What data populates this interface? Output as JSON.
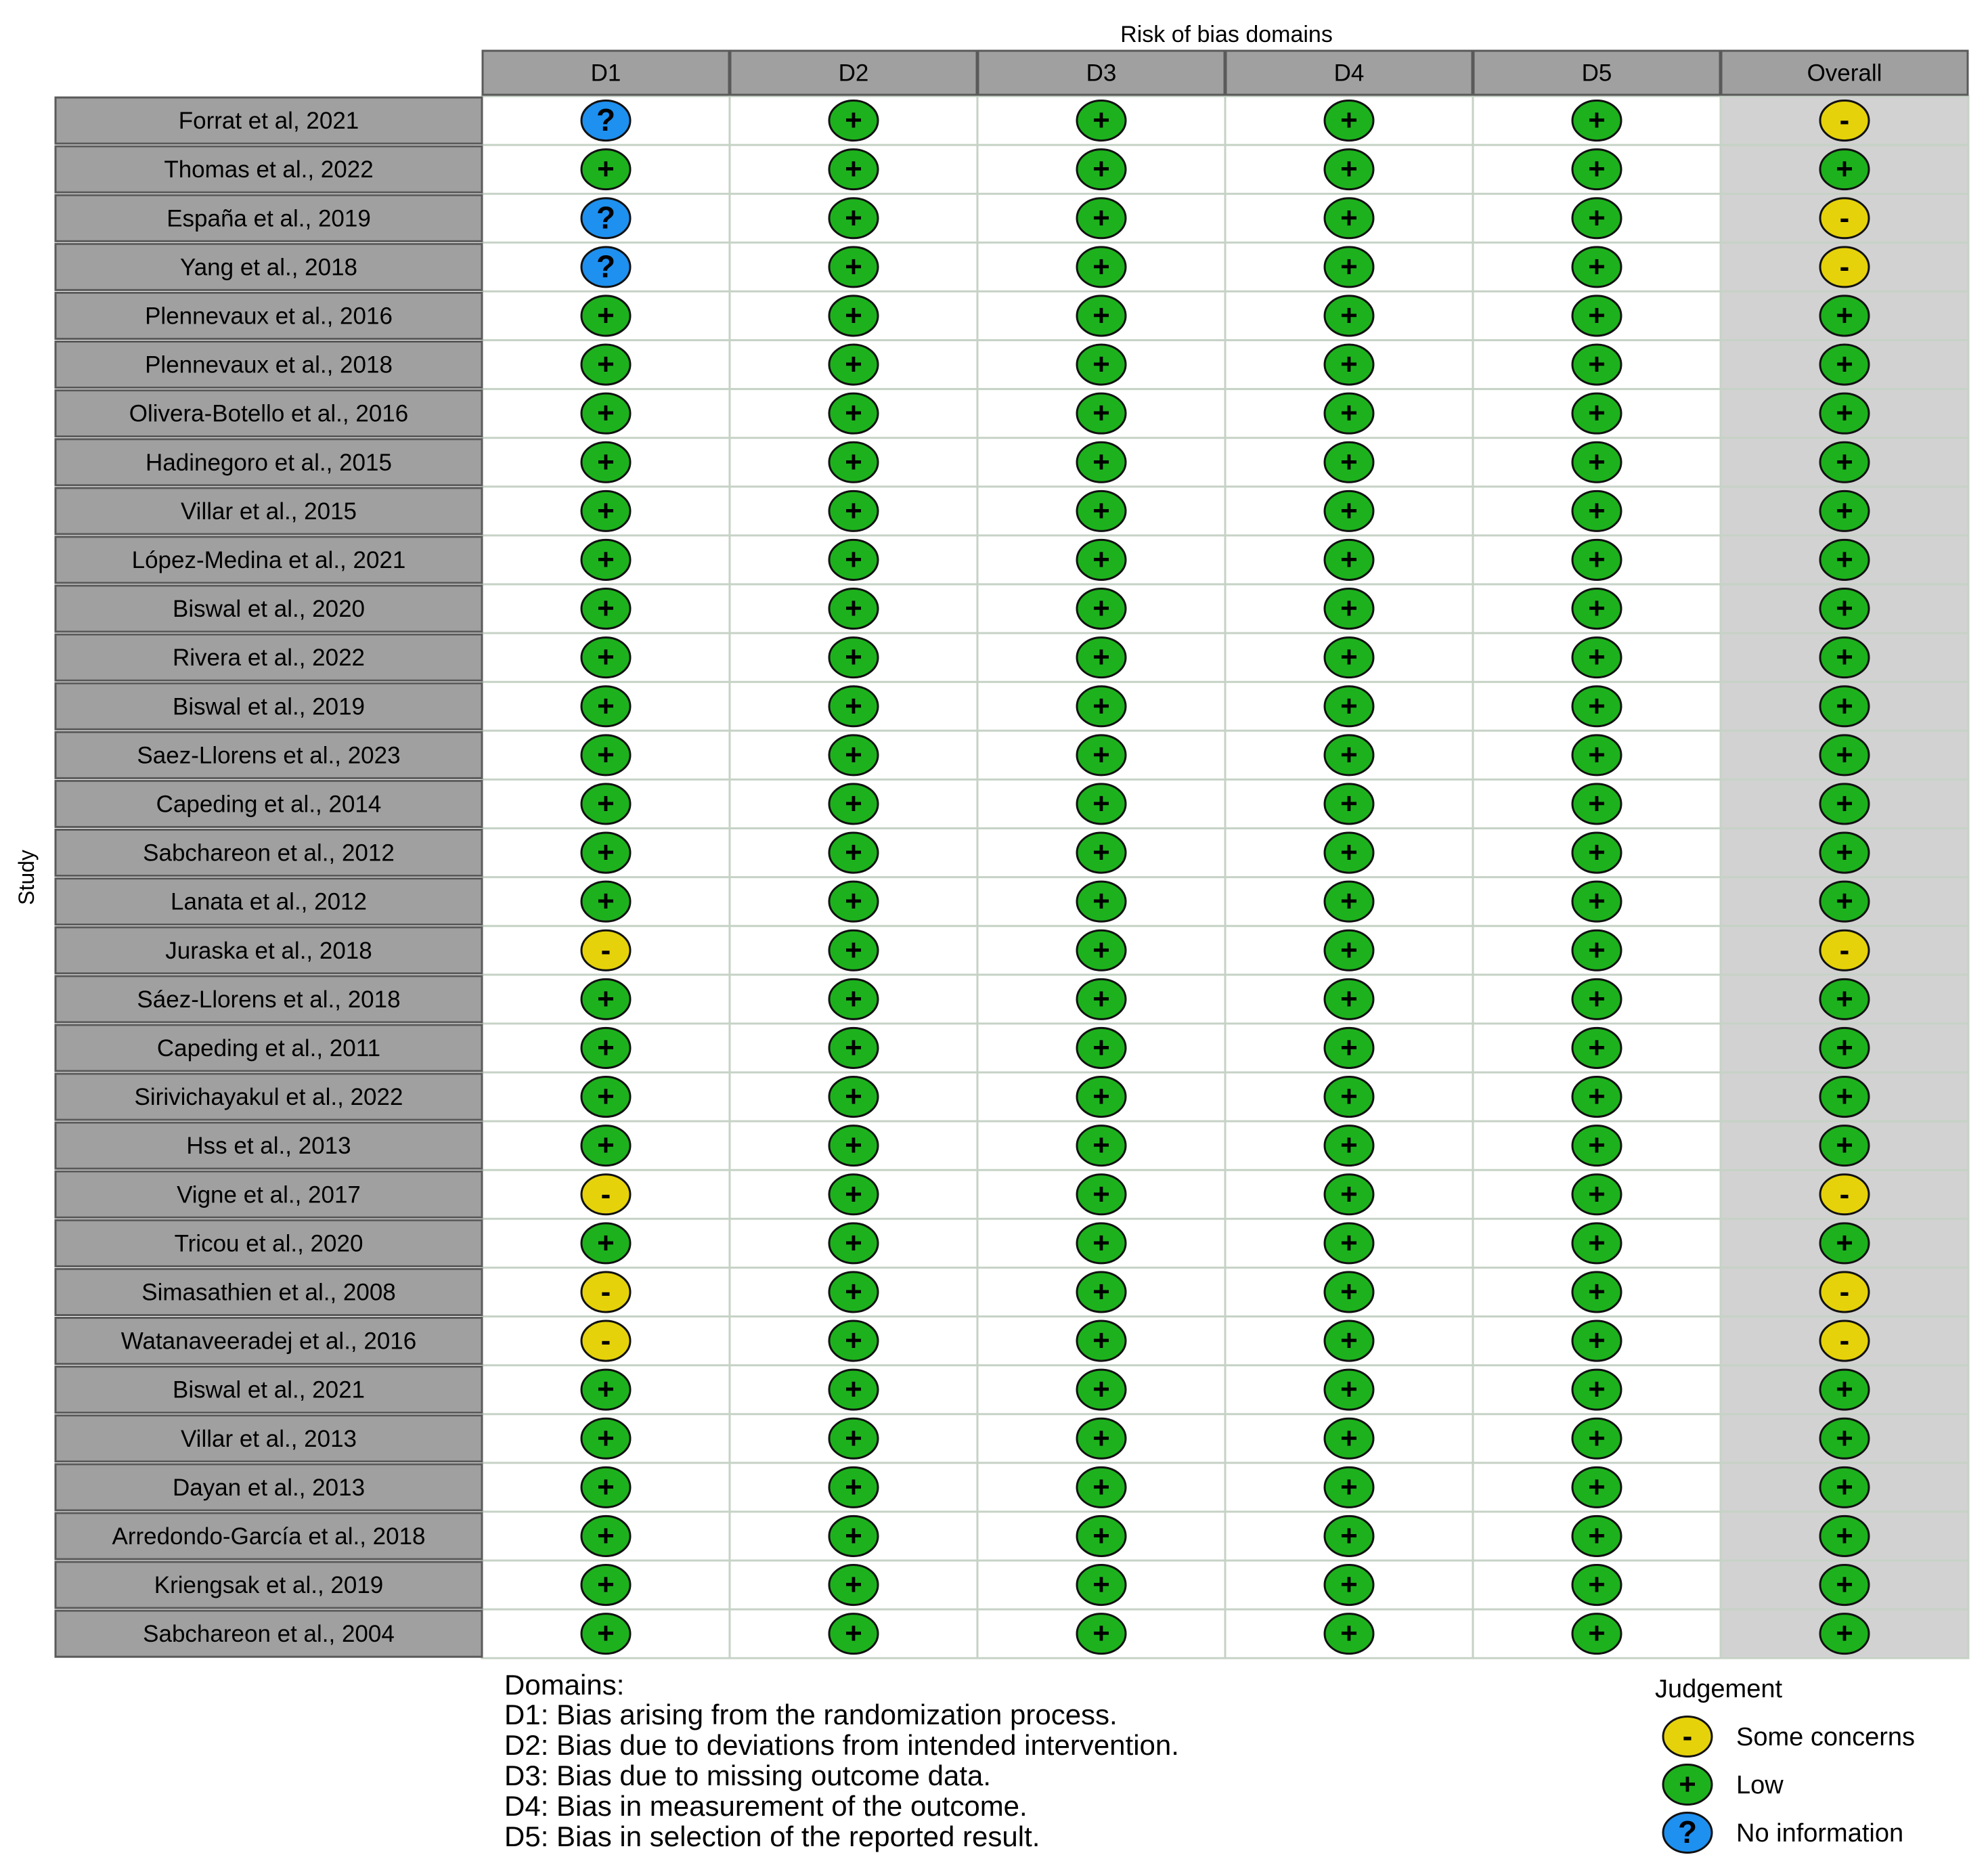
{
  "chart_data": {
    "type": "table",
    "title": "Risk of bias domains",
    "ylabel": "Study",
    "columns": [
      "D1",
      "D2",
      "D3",
      "D4",
      "D5",
      "Overall"
    ],
    "studies": [
      {
        "name": "Forrat et al, 2021",
        "judgements": [
          "no_information",
          "low",
          "low",
          "low",
          "low",
          "some_concerns"
        ]
      },
      {
        "name": "Thomas et al., 2022",
        "judgements": [
          "low",
          "low",
          "low",
          "low",
          "low",
          "low"
        ]
      },
      {
        "name": "España et al., 2019",
        "judgements": [
          "no_information",
          "low",
          "low",
          "low",
          "low",
          "some_concerns"
        ]
      },
      {
        "name": "Yang et al., 2018",
        "judgements": [
          "no_information",
          "low",
          "low",
          "low",
          "low",
          "some_concerns"
        ]
      },
      {
        "name": "Plennevaux et al., 2016",
        "judgements": [
          "low",
          "low",
          "low",
          "low",
          "low",
          "low"
        ]
      },
      {
        "name": "Plennevaux et al., 2018",
        "judgements": [
          "low",
          "low",
          "low",
          "low",
          "low",
          "low"
        ]
      },
      {
        "name": "Olivera-Botello et al., 2016",
        "judgements": [
          "low",
          "low",
          "low",
          "low",
          "low",
          "low"
        ]
      },
      {
        "name": "Hadinegoro et al., 2015",
        "judgements": [
          "low",
          "low",
          "low",
          "low",
          "low",
          "low"
        ]
      },
      {
        "name": "Villar et al., 2015",
        "judgements": [
          "low",
          "low",
          "low",
          "low",
          "low",
          "low"
        ]
      },
      {
        "name": "López-Medina et al., 2021",
        "judgements": [
          "low",
          "low",
          "low",
          "low",
          "low",
          "low"
        ]
      },
      {
        "name": "Biswal et al., 2020",
        "judgements": [
          "low",
          "low",
          "low",
          "low",
          "low",
          "low"
        ]
      },
      {
        "name": "Rivera et al., 2022",
        "judgements": [
          "low",
          "low",
          "low",
          "low",
          "low",
          "low"
        ]
      },
      {
        "name": "Biswal et al., 2019",
        "judgements": [
          "low",
          "low",
          "low",
          "low",
          "low",
          "low"
        ]
      },
      {
        "name": "Saez-Llorens et al., 2023",
        "judgements": [
          "low",
          "low",
          "low",
          "low",
          "low",
          "low"
        ]
      },
      {
        "name": "Capeding et al., 2014",
        "judgements": [
          "low",
          "low",
          "low",
          "low",
          "low",
          "low"
        ]
      },
      {
        "name": "Sabchareon et al., 2012",
        "judgements": [
          "low",
          "low",
          "low",
          "low",
          "low",
          "low"
        ]
      },
      {
        "name": "Lanata et al., 2012",
        "judgements": [
          "low",
          "low",
          "low",
          "low",
          "low",
          "low"
        ]
      },
      {
        "name": "Juraska et al., 2018",
        "judgements": [
          "some_concerns",
          "low",
          "low",
          "low",
          "low",
          "some_concerns"
        ]
      },
      {
        "name": "Sáez-Llorens et al., 2018",
        "judgements": [
          "low",
          "low",
          "low",
          "low",
          "low",
          "low"
        ]
      },
      {
        "name": "Capeding et al., 2011",
        "judgements": [
          "low",
          "low",
          "low",
          "low",
          "low",
          "low"
        ]
      },
      {
        "name": "Sirivichayakul et al., 2022",
        "judgements": [
          "low",
          "low",
          "low",
          "low",
          "low",
          "low"
        ]
      },
      {
        "name": "Hss et al., 2013",
        "judgements": [
          "low",
          "low",
          "low",
          "low",
          "low",
          "low"
        ]
      },
      {
        "name": "Vigne et al., 2017",
        "judgements": [
          "some_concerns",
          "low",
          "low",
          "low",
          "low",
          "some_concerns"
        ]
      },
      {
        "name": "Tricou et al., 2020",
        "judgements": [
          "low",
          "low",
          "low",
          "low",
          "low",
          "low"
        ]
      },
      {
        "name": "Simasathien et al., 2008",
        "judgements": [
          "some_concerns",
          "low",
          "low",
          "low",
          "low",
          "some_concerns"
        ]
      },
      {
        "name": "Watanaveeradej et al., 2016",
        "judgements": [
          "some_concerns",
          "low",
          "low",
          "low",
          "low",
          "some_concerns"
        ]
      },
      {
        "name": "Biswal et al., 2021",
        "judgements": [
          "low",
          "low",
          "low",
          "low",
          "low",
          "low"
        ]
      },
      {
        "name": "Villar et al., 2013",
        "judgements": [
          "low",
          "low",
          "low",
          "low",
          "low",
          "low"
        ]
      },
      {
        "name": "Dayan et al., 2013",
        "judgements": [
          "low",
          "low",
          "low",
          "low",
          "low",
          "low"
        ]
      },
      {
        "name": "Arredondo-García et al., 2018",
        "judgements": [
          "low",
          "low",
          "low",
          "low",
          "low",
          "low"
        ]
      },
      {
        "name": "Kriengsak et al., 2019",
        "judgements": [
          "low",
          "low",
          "low",
          "low",
          "low",
          "low"
        ]
      },
      {
        "name": "Sabchareon et al., 2004",
        "judgements": [
          "low",
          "low",
          "low",
          "low",
          "low",
          "low"
        ]
      }
    ],
    "judgement_styles": {
      "low": {
        "label": "Low",
        "symbol": "+",
        "color": "#1db21d"
      },
      "some_concerns": {
        "label": "Some concerns",
        "symbol": "-",
        "color": "#e6d20a"
      },
      "no_information": {
        "label": "No information",
        "symbol": "?",
        "color": "#1e90f0"
      }
    },
    "domains_legend": {
      "heading": "Domains:",
      "items": [
        "D1: Bias arising from the randomization process.",
        "D2: Bias due to deviations from intended intervention.",
        "D3: Bias due to missing outcome data.",
        "D4: Bias in measurement of the outcome.",
        "D5: Bias in selection of the reported result."
      ]
    },
    "judgement_legend": {
      "heading": "Judgement",
      "order": [
        "some_concerns",
        "low",
        "no_information"
      ]
    },
    "colors": {
      "header_fill": "#a0a0a0",
      "study_label_fill": "#a0a0a0",
      "cell_fill": "#ffffff",
      "overall_fill": "#d2d2d2",
      "grid_line": "#c6d2c6",
      "border": "#5a5a5a"
    }
  }
}
